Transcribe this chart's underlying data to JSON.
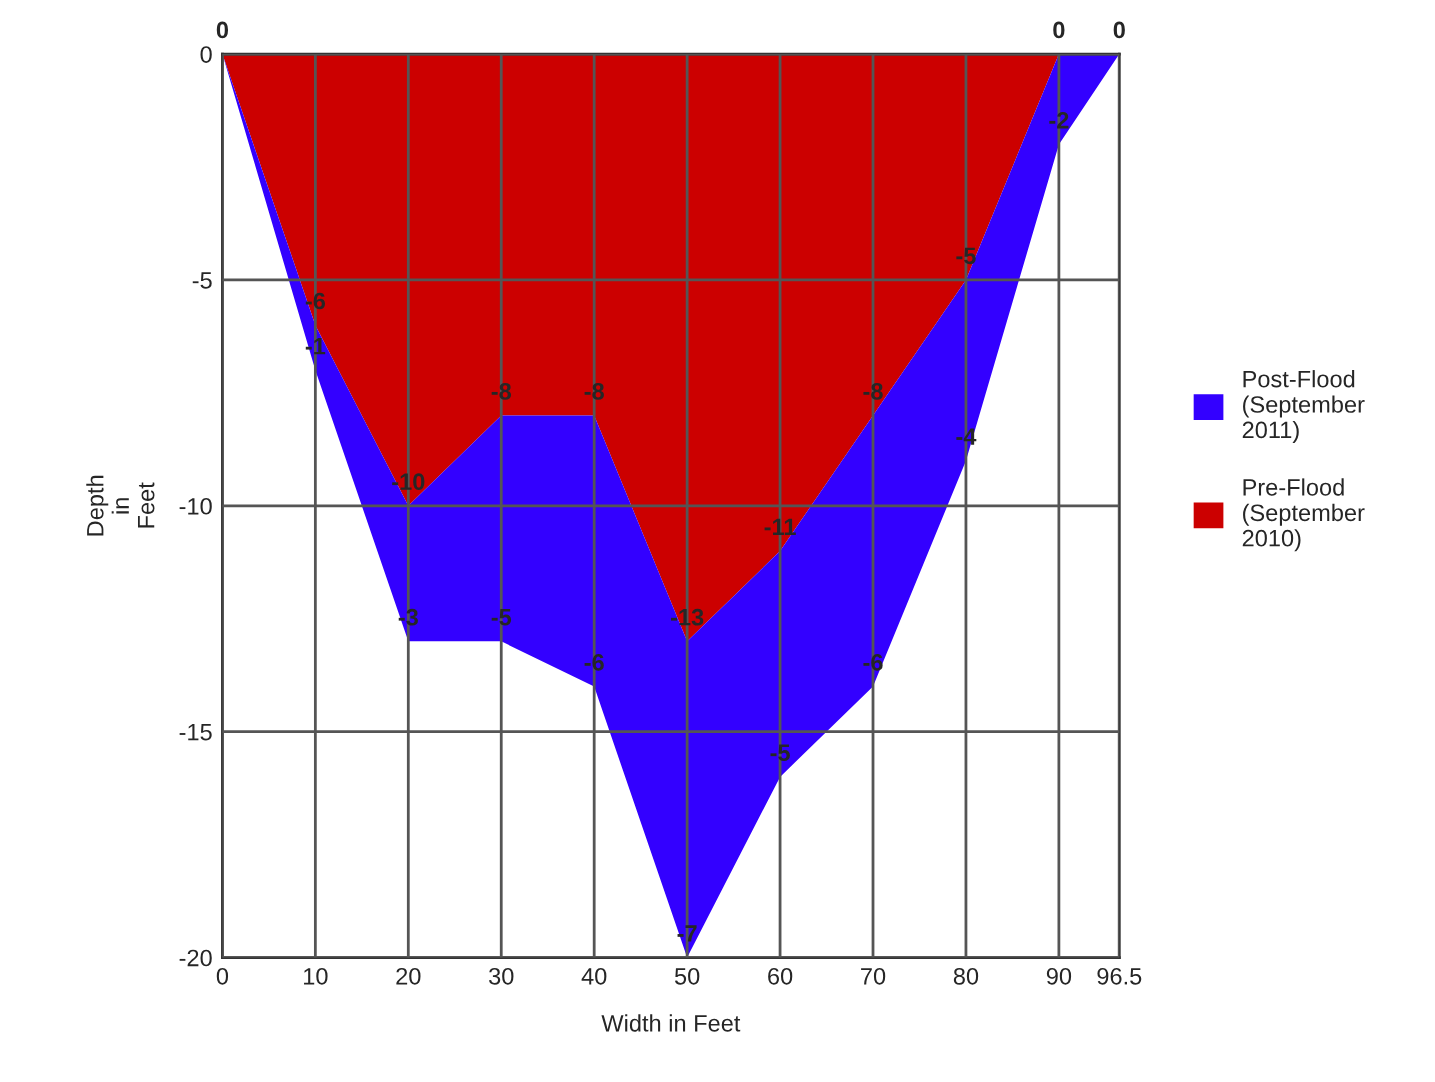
{
  "chart_data": {
    "type": "area",
    "stacked": true,
    "xlabel": "Width in Feet",
    "ylabel": "Depth\nin\nFeet",
    "x": [
      0,
      10,
      20,
      30,
      40,
      50,
      60,
      70,
      80,
      90,
      96.5
    ],
    "series": [
      {
        "name": "Pre-Flood\n(September\n2010)",
        "color": "#cc0000",
        "values": [
          0,
          -6,
          -10,
          -8,
          -8,
          -13,
          -11,
          -8,
          -5,
          0,
          0
        ],
        "value_labels": [
          "0",
          "-6",
          "-10",
          "-8",
          "-8",
          "-13",
          "-11",
          "-8",
          "-5",
          "0",
          "0"
        ]
      },
      {
        "name": "Post-Flood\n(September\n2011)",
        "color": "#3300ff",
        "values": [
          0,
          -1,
          -3,
          -5,
          -6,
          -7,
          -5,
          -6,
          -4,
          -2,
          0
        ],
        "value_labels": [
          null,
          "-1",
          "-3",
          "-5",
          "-6",
          "-7",
          "-5",
          "-6",
          "-4",
          "-2",
          null
        ]
      }
    ],
    "xlim": [
      0,
      96.5
    ],
    "xticks": [
      0,
      10,
      20,
      30,
      40,
      50,
      60,
      70,
      80,
      90,
      96.5
    ],
    "ylim": [
      -20,
      0
    ],
    "yticks": [
      -20,
      -15,
      -10,
      -5,
      0
    ],
    "grid": true,
    "legend": "right"
  }
}
